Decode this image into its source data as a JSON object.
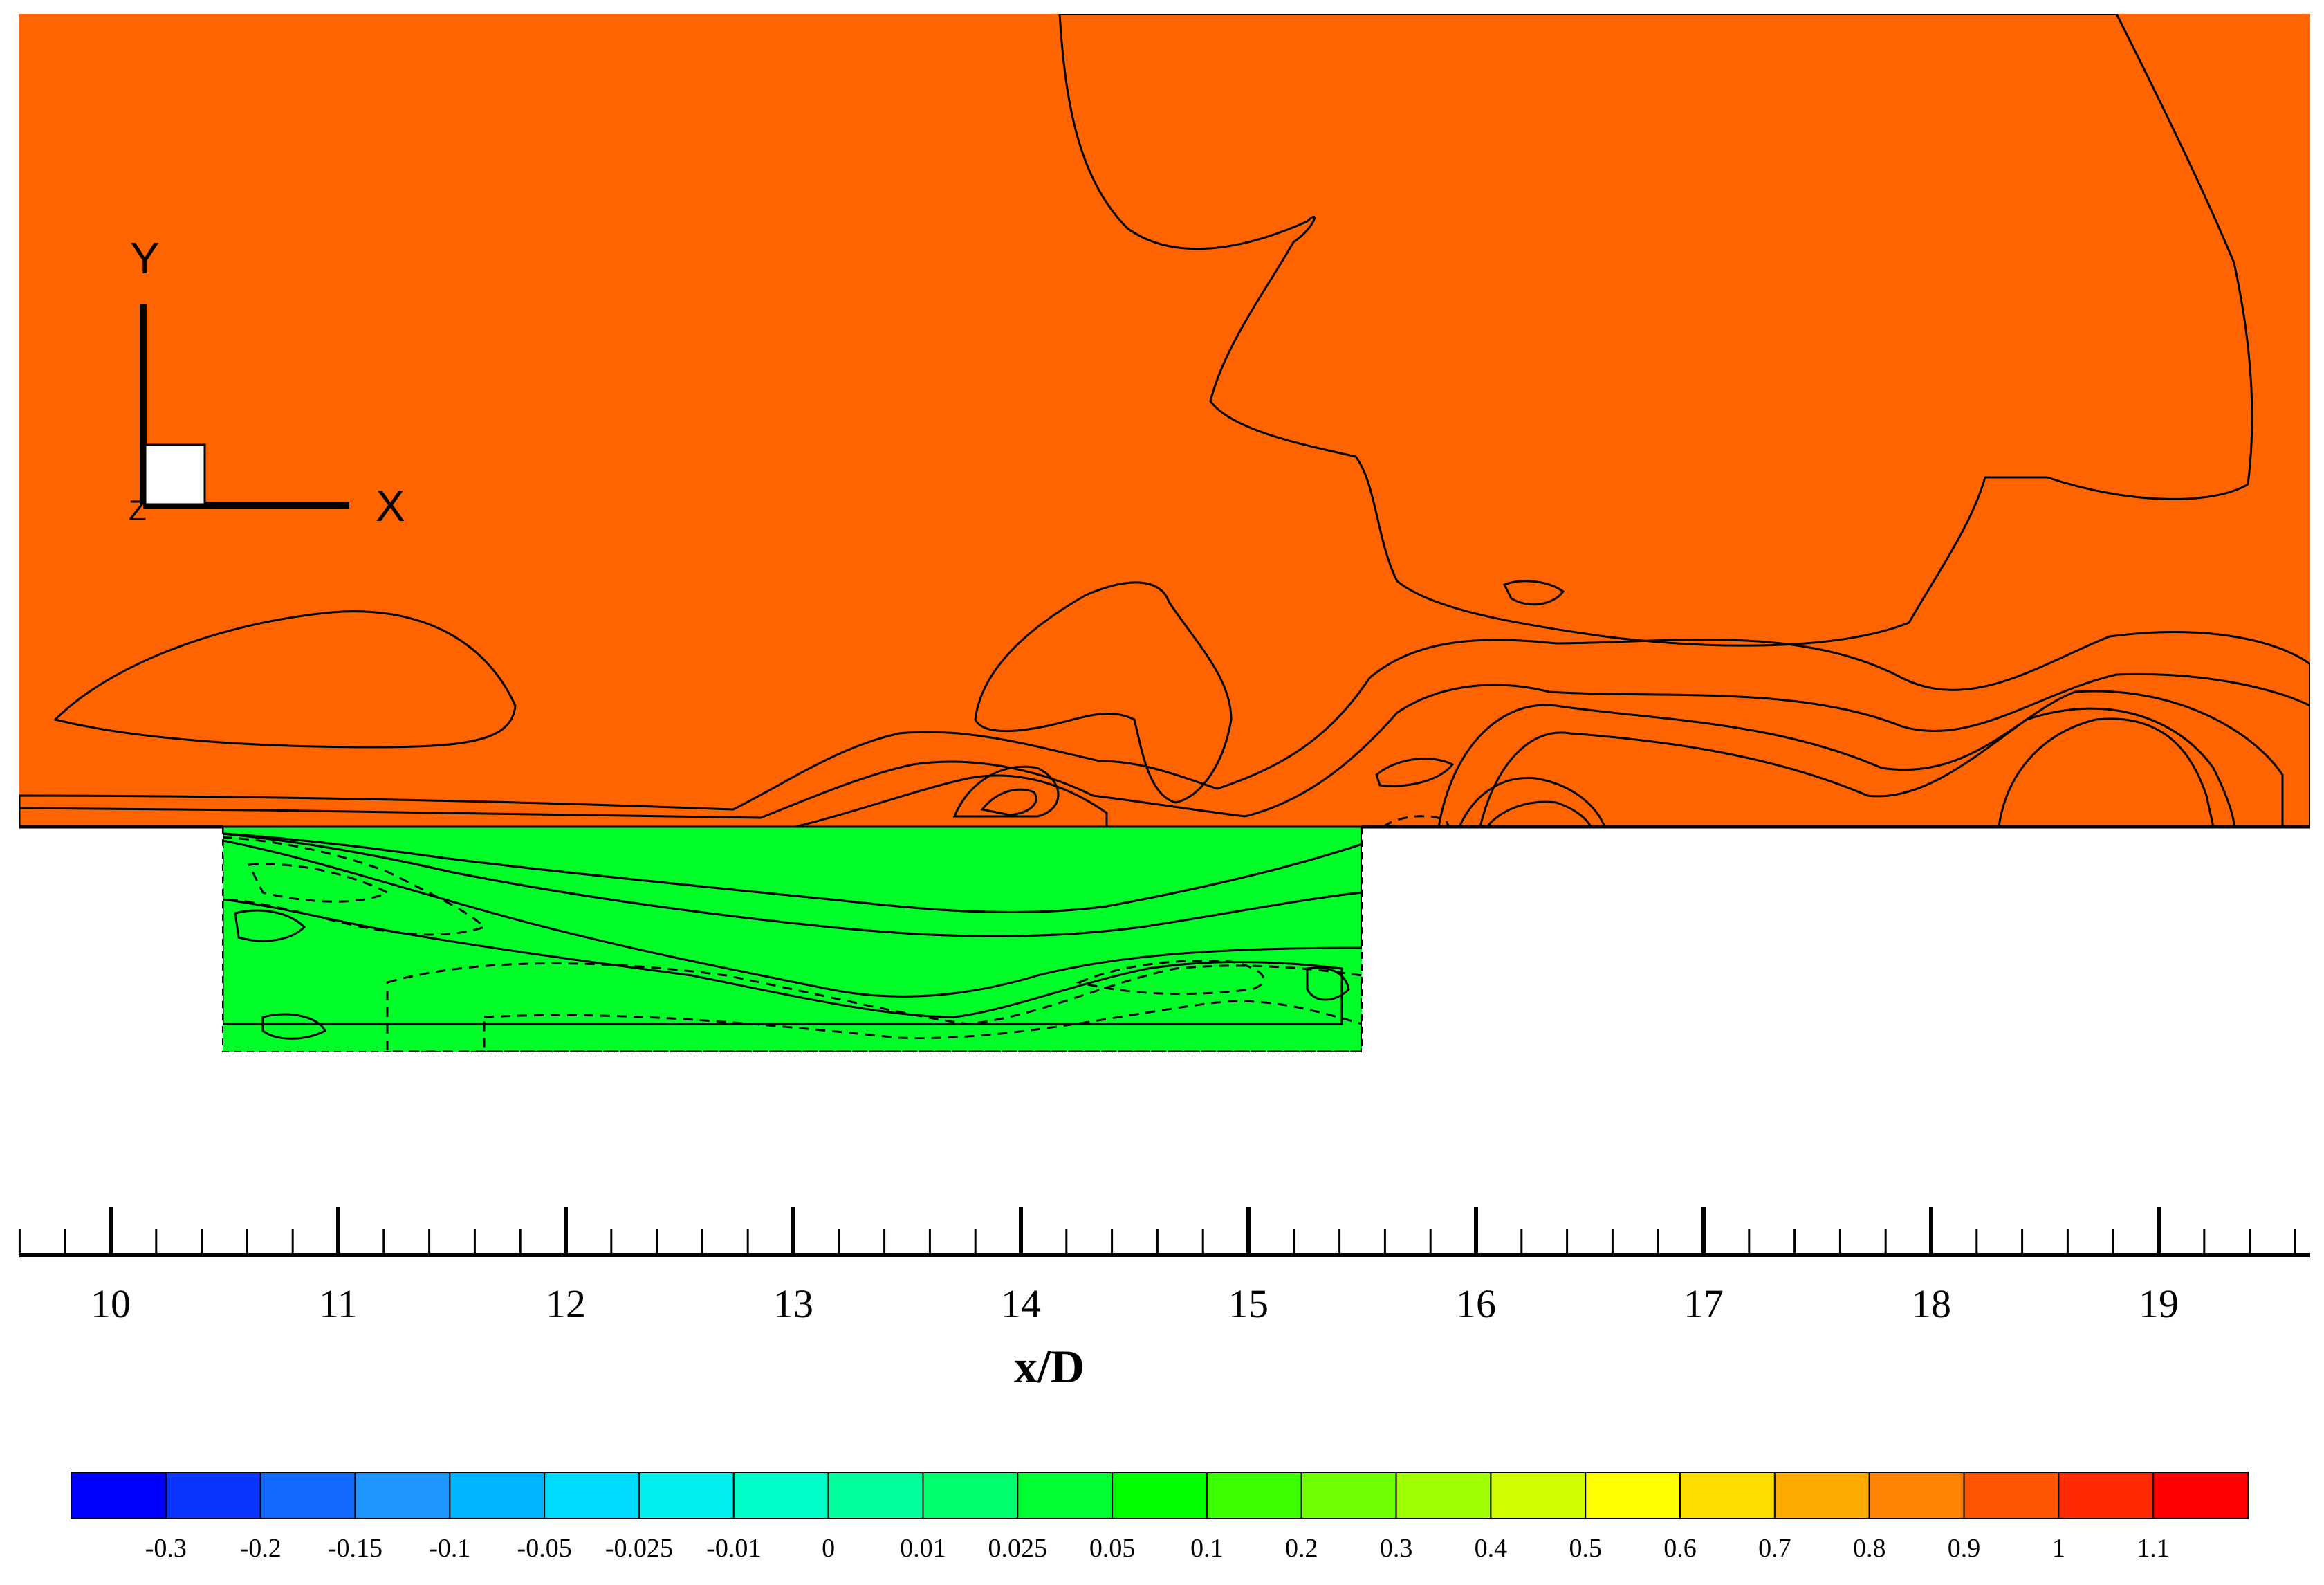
{
  "chart_data": {
    "type": "heatmap",
    "title": "",
    "xlabel": "x/D",
    "ylabel": "",
    "xlim": [
      9.6,
      19.7
    ],
    "x_ticks": [
      10,
      11,
      12,
      13,
      14,
      15,
      16,
      17,
      18,
      19
    ],
    "x_tick_labels": [
      "10",
      "11",
      "12",
      "13",
      "14",
      "15",
      "16",
      "17",
      "18",
      "19"
    ],
    "minor_ticks_per_interval": 5,
    "cavity": {
      "x_start": 10.5,
      "x_end": 15.5
    },
    "triad": {
      "y_label": "Y",
      "x_label": "X",
      "z_label": "Z"
    },
    "legend": {
      "placement": "bottom",
      "levels": [
        "-0.3",
        "-0.2",
        "-0.15",
        "-0.1",
        "-0.05",
        "-0.025",
        "-0.01",
        "0",
        "0.01",
        "0.025",
        "0.05",
        "0.1",
        "0.2",
        "0.3",
        "0.4",
        "0.5",
        "0.6",
        "0.7",
        "0.8",
        "0.9",
        "1",
        "1.1"
      ],
      "colors": [
        "#0000ff",
        "#0a34ff",
        "#1469ff",
        "#1e96ff",
        "#00b4ff",
        "#00dcff",
        "#00f0f0",
        "#00ffc8",
        "#00ff9a",
        "#00ff6e",
        "#00ff32",
        "#00ff00",
        "#3cff00",
        "#6eff00",
        "#a0ff00",
        "#d2ff00",
        "#ffff00",
        "#ffdc00",
        "#ffaa00",
        "#ff8200",
        "#ff5500",
        "#ff2a00",
        "#ff0000"
      ]
    },
    "field_colors": {
      "freestream": "#ff6400",
      "high": "#ff3200",
      "level_09": "#ff8200",
      "level_08": "#ffaa00",
      "level_07": "#ffcc00",
      "level_06": "#ffee00",
      "level_05": "#e6ff00",
      "level_04": "#b4ff00",
      "level_03": "#78ff00",
      "level_02": "#3cff00",
      "level_01": "#00ff28",
      "level_0": "#00ffb4",
      "level_neg_small": "#00dcff",
      "level_neg": "#00b4ff",
      "level_neg_strong": "#0a64ff"
    }
  }
}
